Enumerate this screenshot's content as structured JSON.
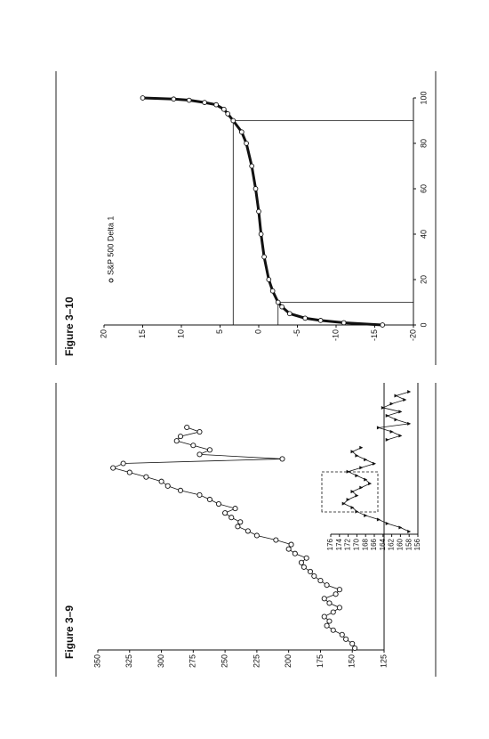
{
  "chart_data": [
    {
      "type": "line",
      "title": "Figure 3–9",
      "values": [
        148,
        150,
        155,
        158,
        165,
        170,
        168,
        172,
        165,
        160,
        168,
        172,
        163,
        160,
        170,
        175,
        180,
        183,
        188,
        190,
        186,
        195,
        200,
        198,
        210,
        225,
        232,
        240,
        238,
        245,
        250,
        242,
        255,
        262,
        270,
        285,
        295,
        300,
        312,
        325,
        338,
        330,
        205,
        270,
        262,
        275,
        288,
        285,
        270,
        280
      ],
      "ylim": [
        125,
        350
      ],
      "yticks": [
        125,
        150,
        175,
        200,
        225,
        250,
        275,
        300,
        325,
        350
      ],
      "color": "#111111",
      "inset": {
        "type": "line",
        "values": [
          158,
          160,
          163,
          165,
          168,
          170,
          171,
          173,
          172,
          170,
          171,
          169,
          167,
          168,
          170,
          172,
          169,
          166,
          168,
          170,
          171,
          169,
          null,
          163,
          160,
          162,
          165,
          158,
          161,
          163,
          160,
          164,
          162,
          159,
          161,
          158
        ],
        "ylim": [
          156,
          176
        ],
        "yticks": [
          156,
          158,
          160,
          162,
          164,
          166,
          168,
          170,
          172,
          174,
          176
        ],
        "color": "#111111"
      }
    },
    {
      "type": "scatter",
      "title": "Figure 3–10",
      "series": [
        {
          "name": "S&P 500 Delta 1",
          "color": "#111111",
          "x": [
            0,
            1,
            2,
            3,
            5,
            8,
            10,
            15,
            20,
            30,
            40,
            50,
            60,
            70,
            80,
            85,
            90,
            93,
            95,
            97,
            98,
            99,
            99.5,
            100
          ],
          "values": [
            -16,
            -11,
            -8,
            -6,
            -4,
            -3,
            -2.5,
            -1.8,
            -1.3,
            -0.7,
            -0.3,
            0,
            0.4,
            0.9,
            1.6,
            2.2,
            3.3,
            4,
            4.5,
            5.5,
            7,
            9,
            11,
            15
          ]
        }
      ],
      "xlim": [
        0,
        100
      ],
      "xticks": [
        0,
        20,
        40,
        60,
        80,
        100
      ],
      "ylim": [
        -20,
        20
      ],
      "yticks": [
        -20,
        -15,
        -10,
        -5,
        0,
        5,
        10,
        15,
        20
      ],
      "legend": "upper left",
      "reference_points": [
        {
          "x": 90,
          "y": 3.3
        },
        {
          "x": 10,
          "y": -2.5
        }
      ]
    }
  ]
}
